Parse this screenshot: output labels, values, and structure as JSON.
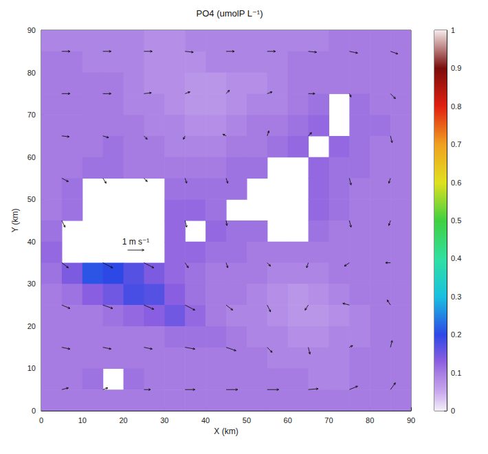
{
  "chart_data": {
    "type": "heatmap",
    "title": "PO4 (umolP L⁻¹)",
    "panel_label": "PO₄",
    "x_label": "X (km)",
    "y_label": "Y (km)",
    "xlim": [
      0,
      90
    ],
    "ylim": [
      0,
      90
    ],
    "xticks": [
      0,
      10,
      20,
      30,
      40,
      50,
      60,
      70,
      80,
      90
    ],
    "yticks": [
      0,
      10,
      20,
      30,
      40,
      50,
      60,
      70,
      80,
      90
    ],
    "grid": false,
    "x": [
      2.5,
      7.5,
      12.5,
      17.5,
      22.5,
      27.5,
      32.5,
      37.5,
      42.5,
      47.5,
      52.5,
      57.5,
      62.5,
      67.5,
      72.5,
      77.5,
      82.5,
      87.5
    ],
    "y": [
      87.5,
      82.5,
      77.5,
      72.5,
      67.5,
      62.5,
      57.5,
      52.5,
      47.5,
      42.5,
      37.5,
      32.5,
      27.5,
      22.5,
      17.5,
      12.5,
      7.5,
      2.5
    ],
    "values": [
      [
        0.09,
        0.09,
        0.09,
        0.09,
        0.09,
        0.08,
        0.08,
        0.09,
        0.09,
        0.09,
        0.09,
        0.09,
        0.09,
        0.09,
        0.1,
        0.1,
        0.1,
        0.1
      ],
      [
        0.1,
        0.1,
        0.09,
        0.09,
        0.09,
        0.08,
        0.08,
        0.08,
        0.09,
        0.09,
        0.09,
        0.09,
        0.1,
        0.1,
        0.1,
        0.1,
        0.1,
        0.1
      ],
      [
        0.1,
        0.1,
        0.1,
        0.1,
        0.09,
        0.08,
        0.08,
        0.07,
        0.07,
        0.08,
        0.08,
        0.09,
        0.1,
        0.1,
        0.1,
        0.1,
        0.1,
        0.1
      ],
      [
        0.1,
        0.1,
        0.1,
        0.1,
        0.09,
        0.09,
        0.08,
        0.07,
        0.07,
        0.08,
        0.09,
        0.09,
        0.1,
        0.11,
        null,
        0.11,
        0.1,
        0.1
      ],
      [
        0.1,
        0.1,
        0.1,
        0.1,
        0.1,
        0.09,
        0.09,
        0.08,
        0.08,
        0.09,
        0.1,
        0.1,
        0.11,
        0.12,
        null,
        0.11,
        0.11,
        0.1
      ],
      [
        0.1,
        0.1,
        0.1,
        0.11,
        0.1,
        0.1,
        0.09,
        0.09,
        0.09,
        0.1,
        0.1,
        0.11,
        0.12,
        null,
        0.12,
        0.11,
        0.1,
        0.1
      ],
      [
        0.1,
        0.1,
        0.11,
        0.11,
        0.1,
        0.1,
        0.1,
        0.1,
        0.1,
        0.11,
        0.11,
        null,
        null,
        0.12,
        0.11,
        0.11,
        0.1,
        0.1
      ],
      [
        0.1,
        0.11,
        null,
        null,
        null,
        null,
        0.11,
        0.11,
        0.11,
        0.11,
        null,
        null,
        null,
        0.12,
        0.11,
        0.1,
        0.1,
        0.1
      ],
      [
        0.1,
        0.11,
        null,
        null,
        null,
        null,
        0.12,
        0.12,
        0.11,
        null,
        null,
        null,
        null,
        0.12,
        0.11,
        0.1,
        0.1,
        0.1
      ],
      [
        0.11,
        null,
        null,
        null,
        null,
        null,
        0.12,
        null,
        0.12,
        0.11,
        0.11,
        null,
        null,
        0.11,
        0.1,
        0.1,
        0.1,
        0.1
      ],
      [
        0.12,
        null,
        null,
        null,
        null,
        null,
        0.12,
        0.12,
        0.11,
        0.11,
        0.1,
        0.1,
        0.1,
        0.1,
        0.1,
        0.1,
        0.1,
        0.1
      ],
      [
        0.11,
        0.14,
        0.21,
        0.2,
        0.17,
        0.14,
        0.12,
        0.11,
        0.1,
        0.1,
        0.1,
        0.09,
        0.09,
        0.09,
        0.1,
        0.1,
        0.1,
        0.1
      ],
      [
        0.1,
        0.11,
        0.13,
        0.15,
        0.18,
        0.17,
        0.13,
        0.11,
        0.1,
        0.1,
        0.09,
        0.08,
        0.07,
        0.08,
        0.09,
        0.1,
        0.1,
        0.1
      ],
      [
        0.1,
        0.1,
        0.1,
        0.11,
        0.12,
        0.13,
        0.15,
        0.12,
        0.1,
        0.09,
        0.09,
        0.08,
        0.07,
        0.07,
        0.08,
        0.09,
        0.1,
        0.1
      ],
      [
        0.1,
        0.1,
        0.1,
        0.1,
        0.1,
        0.1,
        0.11,
        0.11,
        0.11,
        0.1,
        0.09,
        0.09,
        0.08,
        0.08,
        0.09,
        0.09,
        0.1,
        0.1
      ],
      [
        0.1,
        0.1,
        0.1,
        0.1,
        0.1,
        0.1,
        0.1,
        0.1,
        0.1,
        0.1,
        0.1,
        0.09,
        0.09,
        0.09,
        0.09,
        0.1,
        0.1,
        0.1
      ],
      [
        0.1,
        0.1,
        0.11,
        null,
        0.11,
        0.1,
        0.1,
        0.1,
        0.1,
        0.1,
        0.1,
        0.1,
        0.1,
        0.09,
        0.09,
        0.1,
        0.1,
        0.1
      ],
      [
        0.1,
        0.1,
        0.1,
        0.1,
        0.1,
        0.1,
        0.1,
        0.1,
        0.1,
        0.1,
        0.1,
        0.1,
        0.1,
        0.1,
        0.1,
        0.1,
        0.1,
        0.1
      ]
    ],
    "colorbar": {
      "lim": [
        0,
        1
      ],
      "ticks": [
        0,
        0.1,
        0.2,
        0.3,
        0.4,
        0.5,
        0.6,
        0.7,
        0.8,
        0.9,
        1
      ]
    },
    "vectors": {
      "x": [
        5,
        15,
        25,
        35,
        45,
        55,
        65,
        75,
        85
      ],
      "y": [
        85,
        75,
        65,
        55,
        45,
        35,
        25,
        15,
        5
      ],
      "u": [
        [
          0.5,
          0.5,
          0.5,
          0.5,
          0.5,
          0.5,
          0.5,
          0.5,
          0.45
        ],
        [
          0.5,
          0.5,
          0.45,
          0.3,
          0.2,
          0.3,
          0.4,
          0.1,
          0.3
        ],
        [
          0.45,
          0.35,
          0.2,
          -0.1,
          -0.2,
          0.1,
          0.2,
          null,
          0.1
        ],
        [
          0.4,
          0.2,
          0.2,
          0.1,
          0.1,
          null,
          null,
          0.1,
          -0.1
        ],
        [
          0.2,
          null,
          null,
          0.1,
          0.05,
          null,
          null,
          0.1,
          -0.1
        ],
        [
          0.4,
          0.6,
          0.6,
          0.2,
          0.1,
          0.2,
          -0.1,
          -0.3,
          -0.3
        ],
        [
          0.5,
          0.6,
          0.6,
          0.6,
          0.4,
          0.2,
          -0.2,
          -0.4,
          -0.2
        ],
        [
          0.5,
          0.5,
          0.5,
          0.6,
          0.6,
          0.3,
          0.1,
          0.2,
          0.1
        ],
        [
          0.4,
          0.3,
          0.4,
          0.6,
          0.7,
          0.7,
          0.6,
          0.5,
          0.3
        ]
      ],
      "v": [
        [
          0,
          0,
          0,
          -0.05,
          0,
          0,
          -0.05,
          -0.1,
          -0.15
        ],
        [
          0,
          0,
          0.05,
          0.1,
          0.2,
          0.1,
          0,
          -0.2,
          -0.3
        ],
        [
          -0.05,
          -0.1,
          -0.2,
          -0.2,
          0.1,
          0.3,
          0.2,
          null,
          -0.4
        ],
        [
          -0.2,
          -0.3,
          -0.2,
          -0.3,
          -0.3,
          null,
          null,
          -0.4,
          -0.3
        ],
        [
          -0.4,
          null,
          null,
          -0.4,
          -0.3,
          null,
          null,
          -0.4,
          -0.3
        ],
        [
          -0.3,
          -0.3,
          -0.3,
          -0.3,
          -0.3,
          -0.2,
          -0.3,
          -0.2,
          0
        ],
        [
          -0.2,
          -0.2,
          -0.25,
          -0.3,
          -0.3,
          -0.4,
          -0.3,
          0.1,
          0.3
        ],
        [
          -0.1,
          -0.1,
          -0.1,
          -0.1,
          -0.2,
          -0.3,
          -0.4,
          0.1,
          0.4
        ],
        [
          0.1,
          0.1,
          0,
          0,
          0,
          0,
          0.05,
          0.2,
          0.4
        ]
      ]
    },
    "scale_arrow": {
      "label": "1 m s⁻¹",
      "x": 21,
      "y": 38,
      "speed": 1
    }
  }
}
